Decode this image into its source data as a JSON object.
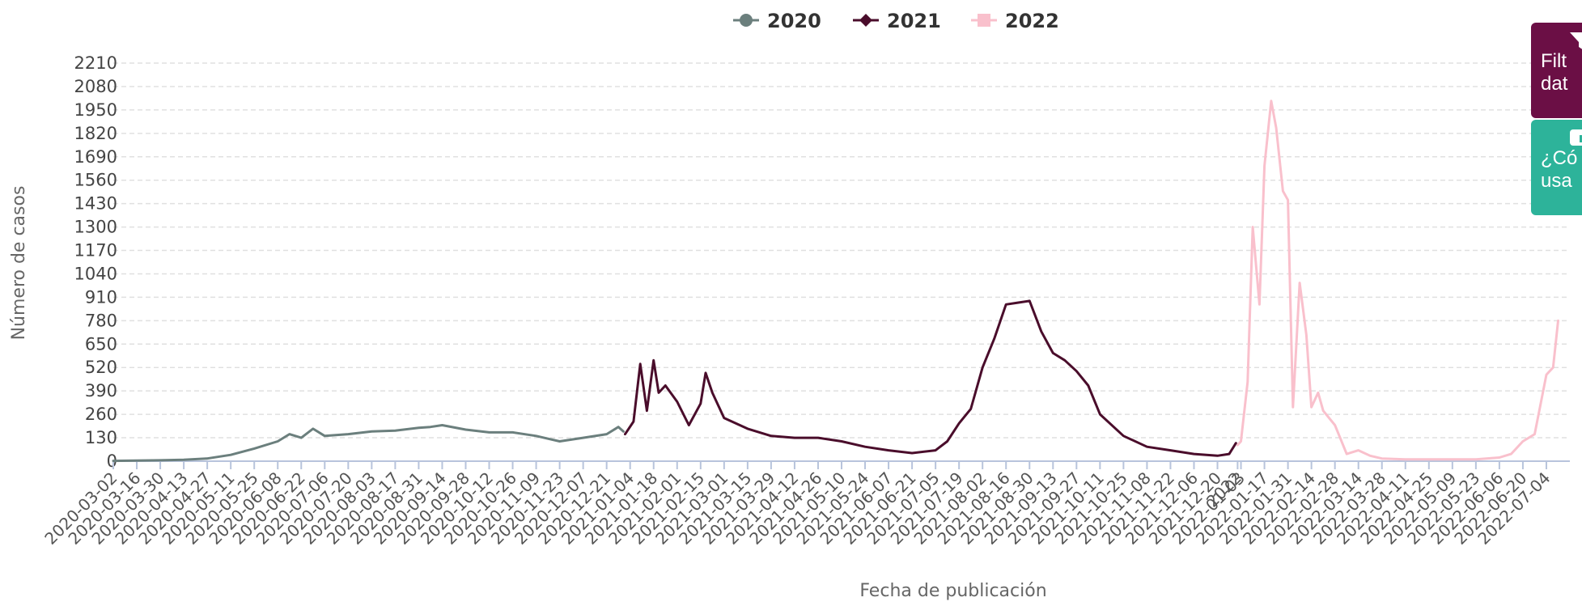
{
  "chart_data": {
    "type": "line",
    "title": "",
    "xlabel": "Fecha de publicación",
    "ylabel": "Número de casos",
    "ylim": [
      0,
      2210
    ],
    "y_ticks": [
      0,
      130,
      260,
      390,
      520,
      650,
      780,
      910,
      1040,
      1170,
      1300,
      1430,
      1560,
      1690,
      1820,
      1950,
      2080,
      2210
    ],
    "x_ticks": [
      "2020-03-02",
      "2020-03-16",
      "2020-03-30",
      "2020-04-13",
      "2020-04-27",
      "2020-05-11",
      "2020-05-25",
      "2020-06-08",
      "2020-06-22",
      "2020-07-06",
      "2020-07-20",
      "2020-08-03",
      "2020-08-17",
      "2020-08-31",
      "2020-09-14",
      "2020-09-28",
      "2020-10-12",
      "2020-10-26",
      "2020-11-09",
      "2020-11-23",
      "2020-12-07",
      "2020-12-21",
      "2021-01-04",
      "2021-01-18",
      "2021-02-01",
      "2021-02-15",
      "2021-03-01",
      "2021-03-15",
      "2021-03-29",
      "2021-04-12",
      "2021-04-26",
      "2021-05-10",
      "2021-05-24",
      "2021-06-07",
      "2021-06-21",
      "2021-07-05",
      "2021-07-19",
      "2021-08-02",
      "2021-08-16",
      "2021-08-30",
      "2021-09-13",
      "2021-09-27",
      "2021-10-11",
      "2021-10-25",
      "2021-11-08",
      "2021-11-22",
      "2021-12-06",
      "2021-12-20",
      "2022-01-03",
      "2022-01-17",
      "2022-01-31",
      "2022-02-14",
      "2022-02-28",
      "2022-03-14",
      "2022-03-28",
      "2022-04-11",
      "2022-04-25",
      "2022-05-09",
      "2022-05-23",
      "2022-06-06",
      "2022-06-20",
      "2022-07-04",
      "2022"
    ],
    "grid": true,
    "legend_position": "top-center",
    "series": [
      {
        "name": "2020",
        "color": "#6b7f7d",
        "marker": "circle",
        "x": [
          "2020-03-02",
          "2020-03-16",
          "2020-03-30",
          "2020-04-13",
          "2020-04-27",
          "2020-05-11",
          "2020-05-25",
          "2020-06-08",
          "2020-06-15",
          "2020-06-22",
          "2020-06-29",
          "2020-07-06",
          "2020-07-20",
          "2020-08-03",
          "2020-08-17",
          "2020-08-31",
          "2020-09-07",
          "2020-09-14",
          "2020-09-28",
          "2020-10-12",
          "2020-10-26",
          "2020-11-09",
          "2020-11-16",
          "2020-11-23",
          "2020-12-07",
          "2020-12-21",
          "2020-12-28",
          "2020-12-31"
        ],
        "values": [
          2,
          3,
          5,
          8,
          15,
          35,
          70,
          110,
          150,
          130,
          180,
          140,
          150,
          165,
          170,
          185,
          190,
          200,
          175,
          160,
          160,
          140,
          125,
          110,
          130,
          150,
          190,
          165
        ]
      },
      {
        "name": "2021",
        "color": "#4a0d2b",
        "marker": "diamond",
        "x": [
          "2021-01-01",
          "2021-01-06",
          "2021-01-10",
          "2021-01-14",
          "2021-01-18",
          "2021-01-21",
          "2021-01-25",
          "2021-02-01",
          "2021-02-08",
          "2021-02-15",
          "2021-02-18",
          "2021-02-22",
          "2021-03-01",
          "2021-03-15",
          "2021-03-29",
          "2021-04-12",
          "2021-04-26",
          "2021-05-10",
          "2021-05-24",
          "2021-06-07",
          "2021-06-21",
          "2021-07-05",
          "2021-07-12",
          "2021-07-19",
          "2021-07-26",
          "2021-08-02",
          "2021-08-09",
          "2021-08-16",
          "2021-08-23",
          "2021-08-30",
          "2021-09-06",
          "2021-09-13",
          "2021-09-20",
          "2021-09-27",
          "2021-10-04",
          "2021-10-11",
          "2021-10-25",
          "2021-11-08",
          "2021-11-22",
          "2021-12-06",
          "2021-12-20",
          "2021-12-27",
          "2021-12-31"
        ],
        "values": [
          150,
          220,
          540,
          280,
          560,
          380,
          420,
          330,
          200,
          320,
          490,
          380,
          240,
          180,
          140,
          130,
          130,
          110,
          80,
          60,
          45,
          60,
          110,
          210,
          290,
          520,
          680,
          870,
          880,
          890,
          720,
          600,
          560,
          500,
          420,
          260,
          140,
          80,
          60,
          40,
          30,
          40,
          100
        ]
      },
      {
        "name": "2022",
        "color": "#f9c0cc",
        "marker": "square",
        "x": [
          "2022-01-01",
          "2022-01-03",
          "2022-01-07",
          "2022-01-10",
          "2022-01-14",
          "2022-01-17",
          "2022-01-21",
          "2022-01-24",
          "2022-01-28",
          "2022-01-31",
          "2022-02-03",
          "2022-02-07",
          "2022-02-11",
          "2022-02-14",
          "2022-02-18",
          "2022-02-21",
          "2022-02-28",
          "2022-03-07",
          "2022-03-14",
          "2022-03-21",
          "2022-03-28",
          "2022-04-11",
          "2022-04-25",
          "2022-05-09",
          "2022-05-23",
          "2022-06-06",
          "2022-06-13",
          "2022-06-20",
          "2022-06-27",
          "2022-07-04",
          "2022-07-08",
          "2022-07-11"
        ],
        "values": [
          90,
          110,
          440,
          1300,
          870,
          1640,
          2000,
          1850,
          1500,
          1450,
          300,
          990,
          700,
          300,
          380,
          280,
          200,
          40,
          60,
          30,
          15,
          10,
          10,
          10,
          10,
          20,
          40,
          110,
          150,
          480,
          520,
          780
        ]
      }
    ]
  },
  "side_buttons": {
    "filter_label": "Filt\ndat",
    "filter_icon": "funnel-icon",
    "help_label": "¿Có\nusa",
    "help_icon": "info-icon"
  }
}
